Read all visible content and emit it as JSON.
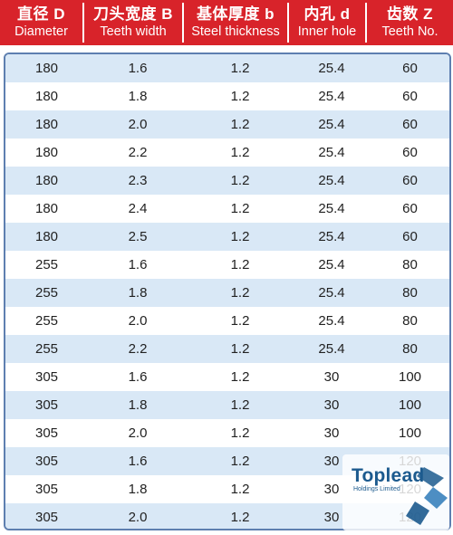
{
  "columns": [
    {
      "cn": "直径 D",
      "en": "Diameter"
    },
    {
      "cn": "刀头宽度 B",
      "en": "Teeth width"
    },
    {
      "cn": "基体厚度 b",
      "en": "Steel thickness"
    },
    {
      "cn": "内孔 d",
      "en": "Inner hole"
    },
    {
      "cn": "齿数 Z",
      "en": "Teeth No."
    }
  ],
  "rows": [
    [
      "180",
      "1.6",
      "1.2",
      "25.4",
      "60"
    ],
    [
      "180",
      "1.8",
      "1.2",
      "25.4",
      "60"
    ],
    [
      "180",
      "2.0",
      "1.2",
      "25.4",
      "60"
    ],
    [
      "180",
      "2.2",
      "1.2",
      "25.4",
      "60"
    ],
    [
      "180",
      "2.3",
      "1.2",
      "25.4",
      "60"
    ],
    [
      "180",
      "2.4",
      "1.2",
      "25.4",
      "60"
    ],
    [
      "180",
      "2.5",
      "1.2",
      "25.4",
      "60"
    ],
    [
      "255",
      "1.6",
      "1.2",
      "25.4",
      "80"
    ],
    [
      "255",
      "1.8",
      "1.2",
      "25.4",
      "80"
    ],
    [
      "255",
      "2.0",
      "1.2",
      "25.4",
      "80"
    ],
    [
      "255",
      "2.2",
      "1.2",
      "25.4",
      "80"
    ],
    [
      "305",
      "1.6",
      "1.2",
      "30",
      "100"
    ],
    [
      "305",
      "1.8",
      "1.2",
      "30",
      "100"
    ],
    [
      "305",
      "2.0",
      "1.2",
      "30",
      "100"
    ],
    [
      "305",
      "1.6",
      "1.2",
      "30",
      "120"
    ],
    [
      "305",
      "1.8",
      "1.2",
      "30",
      "120"
    ],
    [
      "305",
      "2.0",
      "1.2",
      "30",
      "120"
    ]
  ],
  "logo": {
    "name": "Toplead",
    "subtitle": "Holdings Limited"
  },
  "colors": {
    "header": "#d8232a",
    "row_alt": "#d9e8f6",
    "border": "#5e7fb0",
    "logo": "#1c5a8e"
  }
}
